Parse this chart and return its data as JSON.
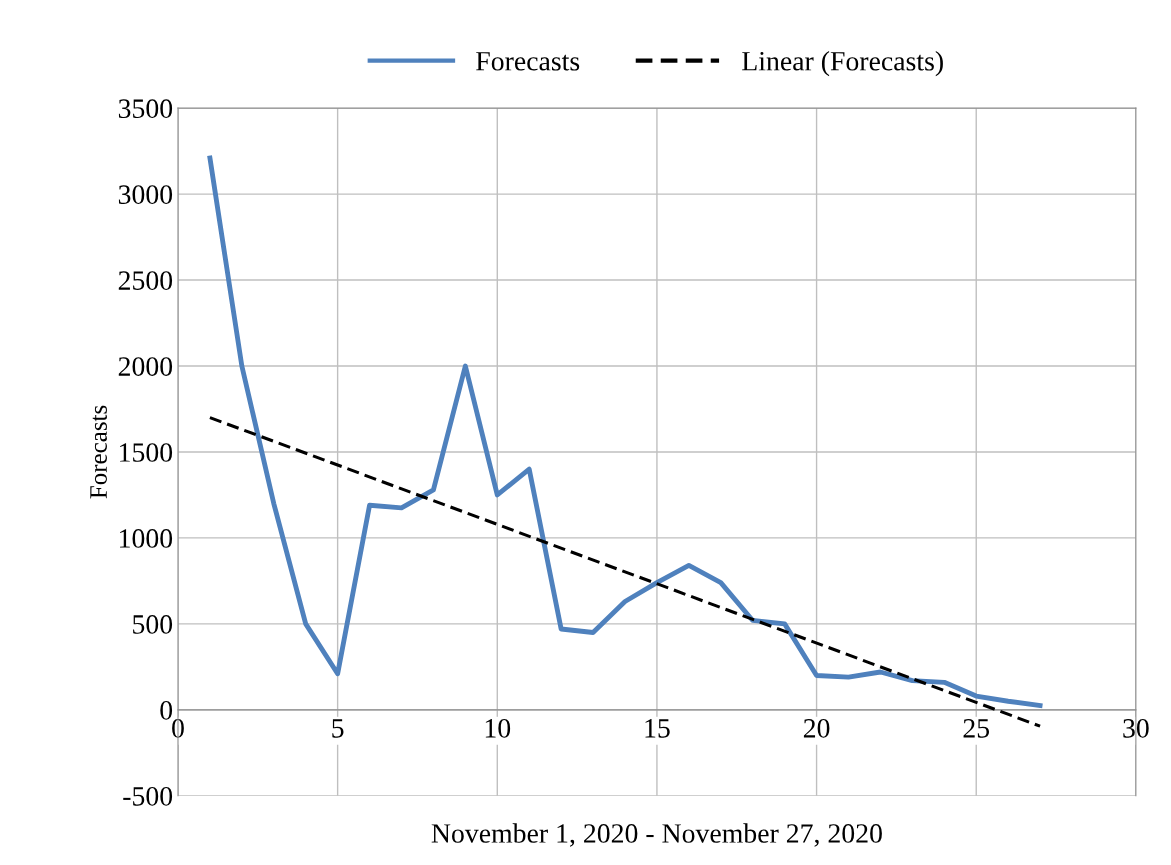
{
  "chart_data": {
    "type": "line",
    "xlabel": "November 1, 2020 - November 27, 2020",
    "ylabel": "Forecasts",
    "x": [
      1,
      2,
      3,
      4,
      5,
      6,
      7,
      8,
      9,
      10,
      11,
      12,
      13,
      14,
      15,
      16,
      17,
      18,
      19,
      20,
      21,
      22,
      23,
      24,
      25,
      26,
      27
    ],
    "series": [
      {
        "name": "Forecasts",
        "color": "#4f81bd",
        "line_style": "solid",
        "values": [
          3210,
          2000,
          1200,
          500,
          210,
          1190,
          1175,
          1280,
          2000,
          1250,
          1400,
          470,
          450,
          630,
          740,
          840,
          740,
          520,
          500,
          200,
          190,
          220,
          170,
          160,
          80,
          50,
          25
        ]
      },
      {
        "name": "Linear (Forecasts)",
        "type": "line",
        "color": "#000000",
        "line_style": "dashed",
        "x": [
          1,
          27
        ],
        "values": [
          1700,
          -95
        ]
      }
    ],
    "xlim": [
      0,
      30
    ],
    "xticks": [
      0,
      5,
      10,
      15,
      20,
      25,
      30
    ],
    "ylim": [
      -500,
      3500
    ],
    "yticks": [
      -500,
      0,
      500,
      1000,
      1500,
      2000,
      2500,
      3000,
      3500
    ],
    "grid": true,
    "legend": "top",
    "marker": "none"
  }
}
